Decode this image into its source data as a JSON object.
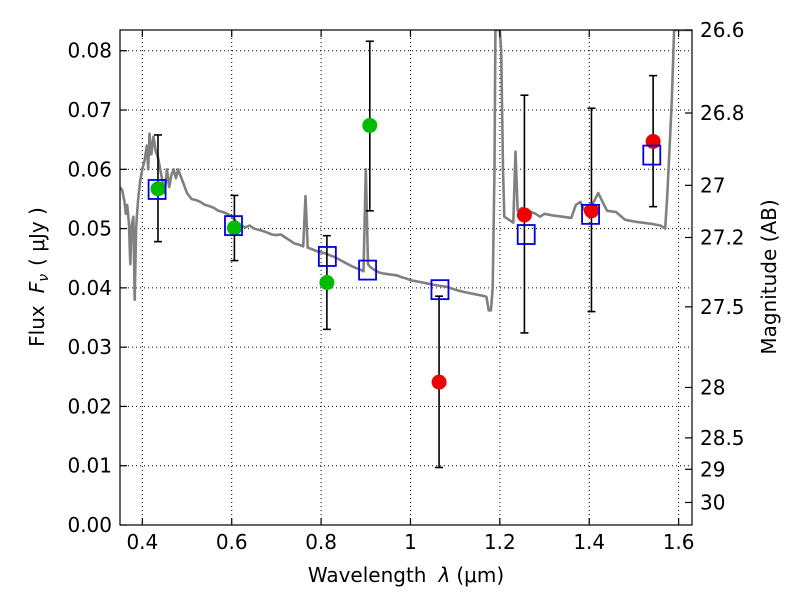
{
  "chart_data": {
    "type": "scatter",
    "xlabel_prefix": "Wavelength",
    "xlabel_symbol": "λ",
    "xlabel_unit": "(μm)",
    "ylabel_prefix": "Flux",
    "ylabel_symbol": "F",
    "ylabel_subscript": "ν",
    "ylabel_unit": "( μJy )",
    "y2label": "Magnitude (AB)",
    "xlim": [
      0.35,
      1.63
    ],
    "ylim": [
      0.0,
      0.0835
    ],
    "x_ticks": [
      0.4,
      0.6,
      0.8,
      1.0,
      1.2,
      1.4,
      1.6
    ],
    "x_tick_labels": [
      "0.4",
      "0.6",
      "0.8",
      "1",
      "1.2",
      "1.4",
      "1.6"
    ],
    "y_ticks": [
      0.0,
      0.01,
      0.02,
      0.03,
      0.04,
      0.05,
      0.06,
      0.07,
      0.08
    ],
    "y_tick_labels": [
      "0.00",
      "0.01",
      "0.02",
      "0.03",
      "0.04",
      "0.05",
      "0.06",
      "0.07",
      "0.08"
    ],
    "y2_ticks": [
      {
        "label": "26.6",
        "flux": 0.0835
      },
      {
        "label": "26.8",
        "flux": 0.0695
      },
      {
        "label": "27",
        "flux": 0.0573
      },
      {
        "label": "27.2",
        "flux": 0.0485
      },
      {
        "label": "27.5",
        "flux": 0.0368
      },
      {
        "label": "28",
        "flux": 0.0232
      },
      {
        "label": "28.5",
        "flux": 0.0147
      },
      {
        "label": "29",
        "flux": 0.0094
      },
      {
        "label": "30",
        "flux": 0.0038
      }
    ],
    "grid": true,
    "colors": {
      "model_spectrum": "#808080",
      "green_points": "#00bb00",
      "red_points": "#ee0000",
      "model_squares": "#0000dd",
      "errorbars": "#000000"
    },
    "series": [
      {
        "kind": "line",
        "color": "#808080",
        "points": [
          [
            0.35,
            0.057
          ],
          [
            0.355,
            0.0565
          ],
          [
            0.36,
            0.0545
          ],
          [
            0.363,
            0.0525
          ],
          [
            0.366,
            0.054
          ],
          [
            0.37,
            0.051
          ],
          [
            0.373,
            0.044
          ],
          [
            0.376,
            0.0505
          ],
          [
            0.38,
            0.052
          ],
          [
            0.383,
            0.038
          ],
          [
            0.386,
            0.05
          ],
          [
            0.39,
            0.0545
          ],
          [
            0.395,
            0.058
          ],
          [
            0.4,
            0.06
          ],
          [
            0.405,
            0.0615
          ],
          [
            0.41,
            0.064
          ],
          [
            0.413,
            0.06
          ],
          [
            0.416,
            0.066
          ],
          [
            0.42,
            0.0625
          ],
          [
            0.425,
            0.0655
          ],
          [
            0.43,
            0.063
          ],
          [
            0.435,
            0.062
          ],
          [
            0.44,
            0.06
          ],
          [
            0.445,
            0.058
          ],
          [
            0.45,
            0.056
          ],
          [
            0.455,
            0.06
          ],
          [
            0.46,
            0.057
          ],
          [
            0.465,
            0.059
          ],
          [
            0.47,
            0.06
          ],
          [
            0.475,
            0.0585
          ],
          [
            0.48,
            0.06
          ],
          [
            0.49,
            0.058
          ],
          [
            0.5,
            0.056
          ],
          [
            0.51,
            0.055
          ],
          [
            0.52,
            0.0548
          ],
          [
            0.53,
            0.0545
          ],
          [
            0.54,
            0.054
          ],
          [
            0.55,
            0.0538
          ],
          [
            0.56,
            0.0535
          ],
          [
            0.57,
            0.053
          ],
          [
            0.58,
            0.0528
          ],
          [
            0.59,
            0.0525
          ],
          [
            0.6,
            0.052
          ],
          [
            0.61,
            0.0512
          ],
          [
            0.62,
            0.0506
          ],
          [
            0.63,
            0.0502
          ],
          [
            0.64,
            0.0505
          ],
          [
            0.65,
            0.05
          ],
          [
            0.66,
            0.0498
          ],
          [
            0.67,
            0.0496
          ],
          [
            0.68,
            0.0493
          ],
          [
            0.69,
            0.049
          ],
          [
            0.7,
            0.0489
          ],
          [
            0.71,
            0.049
          ],
          [
            0.72,
            0.0485
          ],
          [
            0.73,
            0.048
          ],
          [
            0.74,
            0.0475
          ],
          [
            0.75,
            0.0473
          ],
          [
            0.76,
            0.047
          ],
          [
            0.765,
            0.0555
          ],
          [
            0.77,
            0.0468
          ],
          [
            0.78,
            0.0465
          ],
          [
            0.79,
            0.0462
          ],
          [
            0.8,
            0.046
          ],
          [
            0.81,
            0.0458
          ],
          [
            0.82,
            0.0455
          ],
          [
            0.83,
            0.0452
          ],
          [
            0.84,
            0.0448
          ],
          [
            0.85,
            0.0444
          ],
          [
            0.86,
            0.044
          ],
          [
            0.87,
            0.0436
          ],
          [
            0.88,
            0.0433
          ],
          [
            0.89,
            0.043
          ],
          [
            0.895,
            0.0428
          ],
          [
            0.9,
            0.06
          ],
          [
            0.905,
            0.044
          ],
          [
            0.91,
            0.0435
          ],
          [
            0.92,
            0.043
          ],
          [
            0.93,
            0.0426
          ],
          [
            0.94,
            0.0424
          ],
          [
            0.95,
            0.0423
          ],
          [
            0.96,
            0.0422
          ],
          [
            0.97,
            0.0421
          ],
          [
            0.98,
            0.0418
          ],
          [
            0.99,
            0.0416
          ],
          [
            1.0,
            0.0413
          ],
          [
            1.02,
            0.041
          ],
          [
            1.04,
            0.0407
          ],
          [
            1.06,
            0.0404
          ],
          [
            1.08,
            0.0402
          ],
          [
            1.1,
            0.0397
          ],
          [
            1.12,
            0.0393
          ],
          [
            1.14,
            0.039
          ],
          [
            1.16,
            0.0387
          ],
          [
            1.17,
            0.0385
          ],
          [
            1.175,
            0.0362
          ],
          [
            1.18,
            0.0362
          ],
          [
            1.184,
            0.04
          ],
          [
            1.188,
            0.06
          ],
          [
            1.19,
            0.0835
          ],
          [
            1.2,
            0.0835
          ],
          [
            1.203,
            0.08
          ],
          [
            1.207,
            0.06
          ],
          [
            1.21,
            0.052
          ],
          [
            1.22,
            0.0515
          ],
          [
            1.23,
            0.051
          ],
          [
            1.235,
            0.063
          ],
          [
            1.24,
            0.053
          ],
          [
            1.25,
            0.0535
          ],
          [
            1.26,
            0.053
          ],
          [
            1.27,
            0.0528
          ],
          [
            1.28,
            0.0525
          ],
          [
            1.29,
            0.052
          ],
          [
            1.3,
            0.0525
          ],
          [
            1.32,
            0.0522
          ],
          [
            1.34,
            0.052
          ],
          [
            1.36,
            0.0518
          ],
          [
            1.37,
            0.054
          ],
          [
            1.38,
            0.0545
          ],
          [
            1.39,
            0.053
          ],
          [
            1.4,
            0.0535
          ],
          [
            1.41,
            0.0545
          ],
          [
            1.42,
            0.056
          ],
          [
            1.43,
            0.0545
          ],
          [
            1.44,
            0.053
          ],
          [
            1.46,
            0.0528
          ],
          [
            1.48,
            0.0515
          ],
          [
            1.5,
            0.0512
          ],
          [
            1.52,
            0.051
          ],
          [
            1.54,
            0.0508
          ],
          [
            1.56,
            0.0505
          ],
          [
            1.57,
            0.05
          ],
          [
            1.575,
            0.056
          ],
          [
            1.58,
            0.064
          ],
          [
            1.585,
            0.072
          ],
          [
            1.59,
            0.0835
          ],
          [
            1.63,
            0.0835
          ]
        ]
      },
      {
        "kind": "points",
        "color": "#00bb00",
        "points": [
          {
            "x": 0.435,
            "y": 0.0567,
            "err_low": 0.0478,
            "err_high": 0.0658
          },
          {
            "x": 0.606,
            "y": 0.0501,
            "err_low": 0.0446,
            "err_high": 0.0556
          },
          {
            "x": 0.813,
            "y": 0.0409,
            "err_low": 0.033,
            "err_high": 0.0488
          },
          {
            "x": 0.909,
            "y": 0.0674,
            "err_low": 0.053,
            "err_high": 0.0816
          }
        ]
      },
      {
        "kind": "points",
        "color": "#ee0000",
        "points": [
          {
            "x": 1.064,
            "y": 0.0241,
            "err_low": 0.0097,
            "err_high": 0.0386
          },
          {
            "x": 1.255,
            "y": 0.0523,
            "err_low": 0.0324,
            "err_high": 0.0725
          },
          {
            "x": 1.405,
            "y": 0.053,
            "err_low": 0.036,
            "err_high": 0.0703
          },
          {
            "x": 1.543,
            "y": 0.0647,
            "err_low": 0.0537,
            "err_high": 0.0758
          }
        ]
      },
      {
        "kind": "squares",
        "color": "#0000dd",
        "points": [
          {
            "x": 0.433,
            "y": 0.0566
          },
          {
            "x": 0.604,
            "y": 0.0505
          },
          {
            "x": 0.814,
            "y": 0.0453
          },
          {
            "x": 0.904,
            "y": 0.043
          },
          {
            "x": 1.066,
            "y": 0.0397
          },
          {
            "x": 1.259,
            "y": 0.049
          },
          {
            "x": 1.403,
            "y": 0.0524
          },
          {
            "x": 1.54,
            "y": 0.0624
          }
        ]
      }
    ]
  }
}
